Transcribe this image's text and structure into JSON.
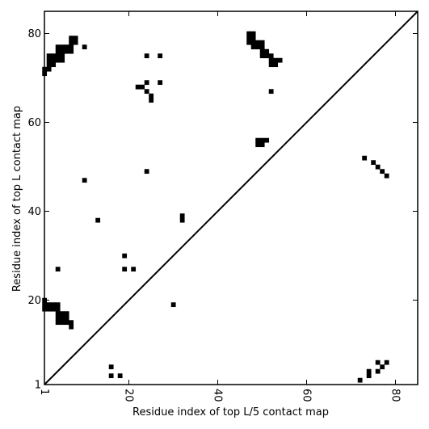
{
  "chart_data": {
    "type": "heatmap",
    "xlabel": "Residue index of top L/5 contact map",
    "ylabel": "Residue index of top L contact map",
    "xlim": [
      1,
      85
    ],
    "ylim": [
      1,
      85
    ],
    "x_ticks": [
      {
        "value": 1,
        "label": "1"
      },
      {
        "value": 20,
        "label": "20"
      },
      {
        "value": 40,
        "label": "40"
      },
      {
        "value": 60,
        "label": "60"
      },
      {
        "value": 80,
        "label": "80"
      }
    ],
    "y_ticks": [
      {
        "value": 1,
        "label": "1"
      },
      {
        "value": 20,
        "label": "20"
      },
      {
        "value": 40,
        "label": "40"
      },
      {
        "value": 60,
        "label": "60"
      },
      {
        "value": 80,
        "label": "80"
      }
    ],
    "diagonal": true,
    "cell_color": "#000000",
    "upper_cells": [
      [
        1,
        71
      ],
      [
        1,
        72
      ],
      [
        2,
        72
      ],
      [
        2,
        73
      ],
      [
        3,
        73
      ],
      [
        2,
        74
      ],
      [
        3,
        74
      ],
      [
        2,
        75
      ],
      [
        3,
        75
      ],
      [
        4,
        74
      ],
      [
        5,
        74
      ],
      [
        4,
        75
      ],
      [
        5,
        75
      ],
      [
        4,
        76
      ],
      [
        5,
        76
      ],
      [
        6,
        76
      ],
      [
        7,
        76
      ],
      [
        4,
        77
      ],
      [
        5,
        77
      ],
      [
        6,
        77
      ],
      [
        7,
        77
      ],
      [
        7,
        78
      ],
      [
        8,
        78
      ],
      [
        7,
        79
      ],
      [
        8,
        79
      ],
      [
        10,
        77
      ],
      [
        24,
        75
      ],
      [
        27,
        75
      ],
      [
        22,
        68
      ],
      [
        23,
        68
      ],
      [
        24,
        69
      ],
      [
        27,
        69
      ],
      [
        24,
        67
      ],
      [
        25,
        66
      ],
      [
        25,
        65
      ],
      [
        24,
        49
      ],
      [
        10,
        47
      ],
      [
        13,
        38
      ],
      [
        32,
        38
      ],
      [
        32,
        39
      ],
      [
        19,
        30
      ],
      [
        19,
        27
      ],
      [
        21,
        27
      ],
      [
        4,
        27
      ],
      [
        30,
        19
      ],
      [
        1,
        20
      ],
      [
        1,
        19
      ],
      [
        2,
        19
      ],
      [
        3,
        19
      ],
      [
        1,
        18
      ],
      [
        2,
        18
      ],
      [
        3,
        18
      ],
      [
        4,
        18
      ],
      [
        4,
        19
      ],
      [
        4,
        17
      ],
      [
        5,
        17
      ],
      [
        5,
        16
      ],
      [
        4,
        16
      ],
      [
        6,
        16
      ],
      [
        6,
        17
      ],
      [
        4,
        15
      ],
      [
        5,
        15
      ],
      [
        6,
        15
      ],
      [
        7,
        15
      ],
      [
        7,
        14
      ],
      [
        16,
        5
      ],
      [
        16,
        3
      ],
      [
        18,
        3
      ],
      [
        47,
        80
      ],
      [
        48,
        80
      ],
      [
        47,
        79
      ],
      [
        48,
        79
      ],
      [
        47,
        78
      ],
      [
        48,
        78
      ],
      [
        49,
        78
      ],
      [
        50,
        78
      ],
      [
        48,
        77
      ],
      [
        49,
        77
      ],
      [
        50,
        77
      ],
      [
        50,
        76
      ],
      [
        51,
        76
      ],
      [
        50,
        75
      ],
      [
        51,
        75
      ],
      [
        52,
        75
      ],
      [
        52,
        74
      ],
      [
        53,
        74
      ],
      [
        54,
        74
      ],
      [
        52,
        73
      ],
      [
        53,
        73
      ],
      [
        52,
        67
      ],
      [
        49,
        56
      ],
      [
        50,
        56
      ],
      [
        51,
        56
      ],
      [
        49,
        55
      ],
      [
        50,
        55
      ]
    ],
    "lower_cells": [
      [
        73,
        52
      ],
      [
        75,
        51
      ],
      [
        76,
        50
      ],
      [
        77,
        49
      ],
      [
        78,
        48
      ],
      [
        76,
        6
      ],
      [
        78,
        6
      ],
      [
        77,
        5
      ],
      [
        74,
        4
      ],
      [
        76,
        4
      ],
      [
        74,
        3
      ],
      [
        72,
        2
      ]
    ]
  }
}
